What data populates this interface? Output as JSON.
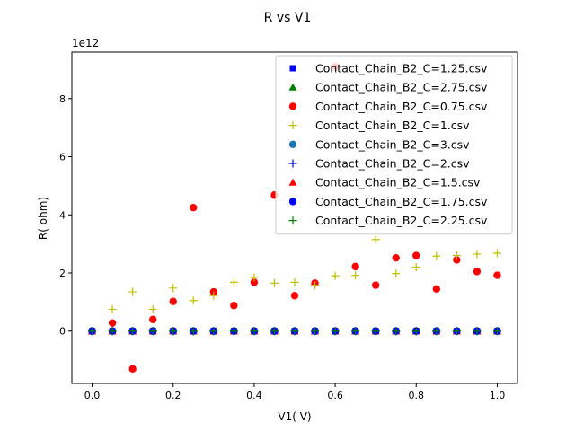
{
  "chart_data": {
    "type": "scatter",
    "title": "R vs V1",
    "xlabel": "V1( V)",
    "ylabel": "R( ohm)",
    "y_offset_label": "1e12",
    "y_scale": 1000000000000.0,
    "xlim": [
      -0.05,
      1.05
    ],
    "ylim": [
      -1.8,
      9.6
    ],
    "xticks": [
      0.0,
      0.2,
      0.4,
      0.6,
      0.8,
      1.0
    ],
    "xtick_labels": [
      "0.0",
      "0.2",
      "0.4",
      "0.6",
      "0.8",
      "1.0"
    ],
    "yticks": [
      0,
      2,
      4,
      6,
      8
    ],
    "ytick_labels": [
      "0",
      "2",
      "4",
      "6",
      "8"
    ],
    "grid": false,
    "legend_position": "top-right",
    "x": [
      0.0,
      0.05,
      0.1,
      0.15,
      0.2,
      0.25,
      0.3,
      0.35,
      0.4,
      0.45,
      0.5,
      0.55,
      0.6,
      0.65,
      0.7,
      0.75,
      0.8,
      0.85,
      0.9,
      0.95,
      1.0
    ],
    "series": [
      {
        "name": "Contact_Chain_B2_C=1.25.csv",
        "marker": "square",
        "color": "#0000ff",
        "values": [
          0,
          0,
          0,
          0,
          0,
          0,
          0,
          0,
          0,
          0,
          0,
          0,
          0,
          0,
          0,
          0,
          0,
          0,
          0,
          0,
          0
        ]
      },
      {
        "name": "Contact_Chain_B2_C=2.75.csv",
        "marker": "triangle",
        "color": "#008000",
        "values": [
          0,
          0,
          0,
          0,
          0,
          0,
          0,
          0,
          0,
          0,
          0,
          0,
          0,
          0,
          0,
          0,
          0,
          0,
          0,
          0,
          0
        ]
      },
      {
        "name": "Contact_Chain_B2_C=0.75.csv",
        "marker": "circle",
        "color": "#ff0000",
        "values": [
          0,
          0.28,
          -1.3,
          0.4,
          1.02,
          4.25,
          1.35,
          0.88,
          1.68,
          4.68,
          1.22,
          1.65,
          9.1,
          2.22,
          1.58,
          2.52,
          2.6,
          1.45,
          2.45,
          2.05,
          1.92
        ]
      },
      {
        "name": "Contact_Chain_B2_C=1.csv",
        "marker": "plus",
        "color": "#bfbf00",
        "values": [
          0,
          0.75,
          1.35,
          0.75,
          1.48,
          1.05,
          1.22,
          1.68,
          1.85,
          1.65,
          1.68,
          1.58,
          1.9,
          1.92,
          3.15,
          1.98,
          2.2,
          2.58,
          2.6,
          2.65,
          2.68
        ]
      },
      {
        "name": "Contact_Chain_B2_C=3.csv",
        "marker": "circle",
        "color": "#1f77b4",
        "values": [
          0,
          0,
          0,
          0,
          0,
          0,
          0,
          0,
          0,
          0,
          0,
          0,
          0,
          0,
          0,
          0,
          0,
          0,
          0,
          0,
          0
        ]
      },
      {
        "name": "Contact_Chain_B2_C=2.csv",
        "marker": "plus",
        "color": "#0000ff",
        "values": [
          0,
          0,
          0,
          0,
          0,
          0,
          0,
          0,
          0,
          0,
          0,
          0,
          0,
          0,
          0,
          0,
          0,
          0,
          0,
          0,
          0
        ]
      },
      {
        "name": "Contact_Chain_B2_C=1.5.csv",
        "marker": "triangle",
        "color": "#ff0000",
        "values": [
          0,
          0,
          0,
          0,
          0,
          0,
          0,
          0,
          0,
          0,
          0,
          0,
          0,
          0,
          0,
          0,
          0,
          0,
          0,
          0,
          0
        ]
      },
      {
        "name": "Contact_Chain_B2_C=1.75.csv",
        "marker": "circle",
        "color": "#0000ff",
        "values": [
          0,
          0,
          0,
          0,
          0,
          0,
          0,
          0,
          0,
          0,
          0,
          0,
          0,
          0,
          0,
          0,
          0,
          0,
          0,
          0,
          0
        ]
      },
      {
        "name": "Contact_Chain_B2_C=2.25.csv",
        "marker": "plus",
        "color": "#008000",
        "values": [
          0,
          0,
          0,
          0,
          0,
          0,
          0,
          0,
          0,
          0,
          0,
          0,
          0,
          0,
          0,
          0,
          0,
          0,
          0,
          0,
          0
        ]
      }
    ]
  }
}
